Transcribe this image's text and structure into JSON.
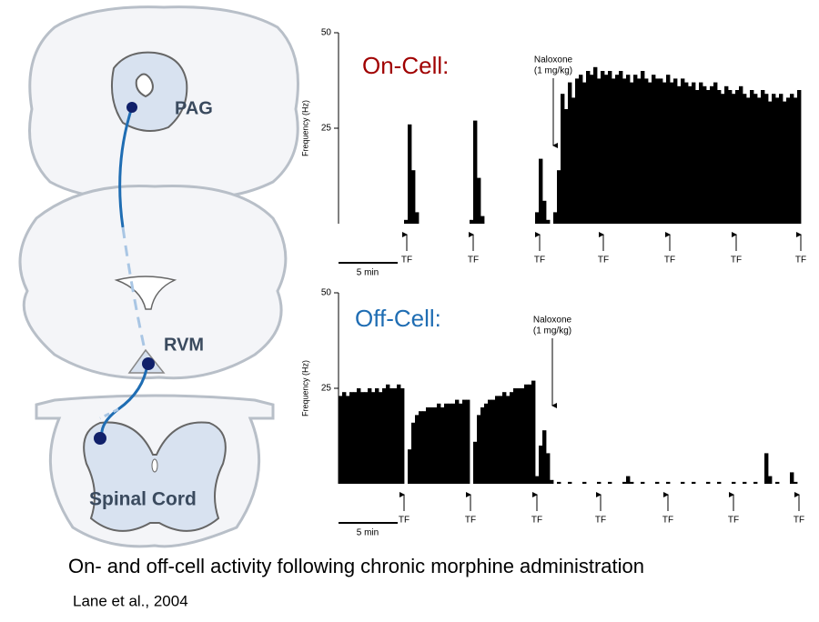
{
  "diagram": {
    "labels": [
      "PAG",
      "RVM",
      "Spinal Cord"
    ]
  },
  "caption": "On- and off-cell activity following chronic morphine administration",
  "citation": "Lane et al., 2004",
  "chart_data": [
    {
      "type": "bar",
      "title": "On-Cell:",
      "title_color": "#a00000",
      "ylabel": "Frequency (Hz)",
      "ylim": [
        0,
        50
      ],
      "yticks": [
        25,
        50
      ],
      "color": "#000000",
      "annotation": [
        "Naloxone",
        "(1 mg/kg)"
      ],
      "events": [
        "TF",
        "TF",
        "TF",
        "TF",
        "TF",
        "TF",
        "TF"
      ],
      "scale_bar": "5 min",
      "values": [
        0,
        0,
        0,
        0,
        0,
        0,
        0,
        0,
        0,
        0,
        0,
        0,
        0,
        0,
        0,
        0,
        0,
        0,
        1,
        26,
        14,
        3,
        0,
        0,
        0,
        0,
        0,
        0,
        0,
        0,
        0,
        0,
        0,
        0,
        0,
        0,
        1,
        27,
        12,
        2,
        0,
        0,
        0,
        0,
        0,
        0,
        0,
        0,
        0,
        0,
        0,
        0,
        0,
        0,
        3,
        17,
        6,
        1,
        0,
        3,
        14,
        34,
        30,
        37,
        33,
        38,
        39,
        37,
        40,
        39,
        41,
        38,
        40,
        39,
        40,
        38,
        39,
        40,
        38,
        39,
        37,
        39,
        38,
        40,
        38,
        37,
        39,
        38,
        38,
        37,
        39,
        37,
        38,
        36,
        38,
        37,
        36,
        37,
        35,
        37,
        36,
        35,
        36,
        37,
        35,
        34,
        36,
        35,
        34,
        35,
        36,
        34,
        33,
        35,
        34,
        33,
        35,
        34,
        32,
        34,
        33,
        34,
        32,
        33,
        34,
        33,
        35
      ]
    },
    {
      "type": "bar",
      "title": "Off-Cell:",
      "title_color": "#1f6db3",
      "ylabel": "Frequency (Hz)",
      "ylim": [
        0,
        50
      ],
      "yticks": [
        25,
        50
      ],
      "color": "#000000",
      "annotation": [
        "Naloxone",
        "(1 mg/kg)"
      ],
      "events": [
        "TF",
        "TF",
        "TF",
        "TF",
        "TF",
        "TF",
        "TF"
      ],
      "scale_bar": "5 min",
      "values": [
        23,
        24,
        23,
        24,
        24,
        25,
        24,
        24,
        25,
        24,
        25,
        24,
        25,
        26,
        25,
        25,
        26,
        25,
        0,
        9,
        16,
        18,
        19,
        19,
        20,
        20,
        20,
        21,
        20,
        21,
        21,
        21,
        22,
        21,
        22,
        22,
        0,
        11,
        18,
        20,
        21,
        22,
        22,
        23,
        23,
        24,
        23,
        24,
        25,
        25,
        25,
        26,
        26,
        27,
        2,
        10,
        14,
        8,
        1,
        0,
        0.5,
        0,
        0,
        0.5,
        0,
        0,
        0,
        0.5,
        0,
        0,
        0,
        0.5,
        0,
        0,
        0.5,
        0,
        0,
        0,
        0.5,
        2,
        0.5,
        0,
        0,
        0.5,
        0,
        0,
        0,
        0.5,
        0,
        0,
        0.5,
        0,
        0,
        0,
        0.5,
        0,
        0,
        0.5,
        0,
        0,
        0,
        0.5,
        0,
        0,
        0.5,
        0,
        0,
        0,
        0.5,
        0,
        0,
        0.5,
        0,
        0,
        0.5,
        0,
        0,
        8,
        2,
        0,
        0.5,
        0,
        0,
        0,
        3,
        0.5,
        0
      ]
    }
  ]
}
